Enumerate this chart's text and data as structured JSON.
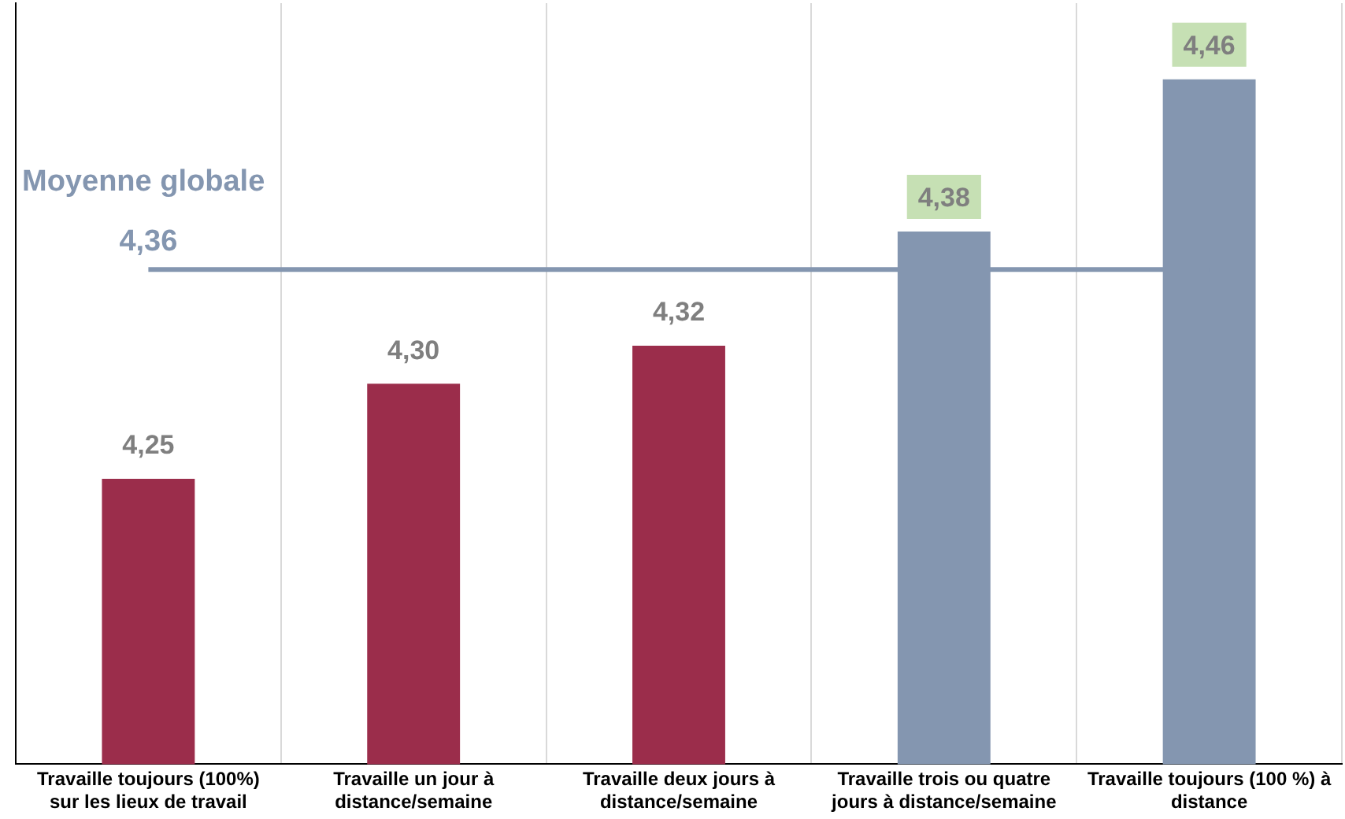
{
  "chart_data": {
    "type": "bar",
    "categories": [
      "Travaille toujours (100%) sur les lieux de travail",
      "Travaille un jour à distance/semaine",
      "Travaille deux jours à distance/semaine",
      "Travaille trois ou quatre jours à distance/semaine",
      "Travaille toujours (100 %) à distance"
    ],
    "values": [
      4.25,
      4.3,
      4.32,
      4.38,
      4.46
    ],
    "value_labels": [
      "4,25",
      "4,30",
      "4,32",
      "4,38",
      "4,46"
    ],
    "colors": [
      "#9b2d4b",
      "#9b2d4b",
      "#9b2d4b",
      "#8496b0",
      "#8496b0"
    ],
    "ylim": [
      4.1,
      4.5
    ],
    "tick_labels": "x",
    "grid": "x",
    "legend": false,
    "ref_lines": [
      {
        "axis": "y",
        "value": 4.36,
        "label": "Moyenne globale\n4,36",
        "color": "#8496b0"
      }
    ]
  }
}
